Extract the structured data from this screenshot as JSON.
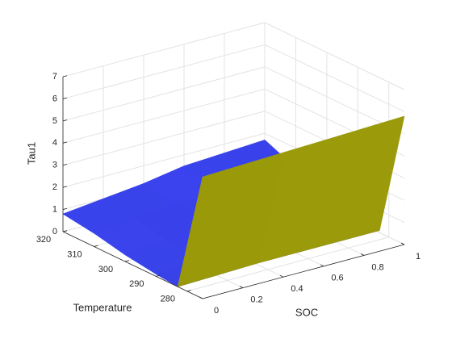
{
  "chart_data": {
    "type": "surface",
    "xlabel": "SOC",
    "ylabel": "Temperature",
    "zlabel": "Tau1",
    "x": [
      0,
      0.2,
      0.4,
      0.6,
      0.8,
      1
    ],
    "y": [
      275,
      283,
      290,
      300,
      310,
      320
    ],
    "z": [
      [
        5.5,
        5.56,
        5.62,
        5.68,
        5.74,
        5.8
      ],
      [
        0,
        0.05,
        0.1,
        0.1,
        0.1,
        0.1
      ],
      [
        0.1,
        0.2,
        0.3,
        0.3,
        0.3,
        0.3
      ],
      [
        0.3,
        0.5,
        0.6,
        0.6,
        0.7,
        0.7
      ],
      [
        0.6,
        0.8,
        0.9,
        1.0,
        1.1,
        1.1
      ],
      [
        0.8,
        1.0,
        1.2,
        1.5,
        1.6,
        1.7
      ]
    ],
    "xlim": [
      0,
      1
    ],
    "xticks": [
      0,
      0.2,
      0.4,
      0.6,
      0.8,
      1
    ],
    "ylim": [
      275,
      320
    ],
    "yticks": [
      280,
      290,
      300,
      310,
      320
    ],
    "zlim": [
      0,
      7
    ],
    "zticks": [
      0,
      1,
      2,
      3,
      4,
      5,
      6,
      7
    ],
    "grid": true,
    "colormap": [
      "#3c46f6",
      "#f5f510"
    ]
  }
}
